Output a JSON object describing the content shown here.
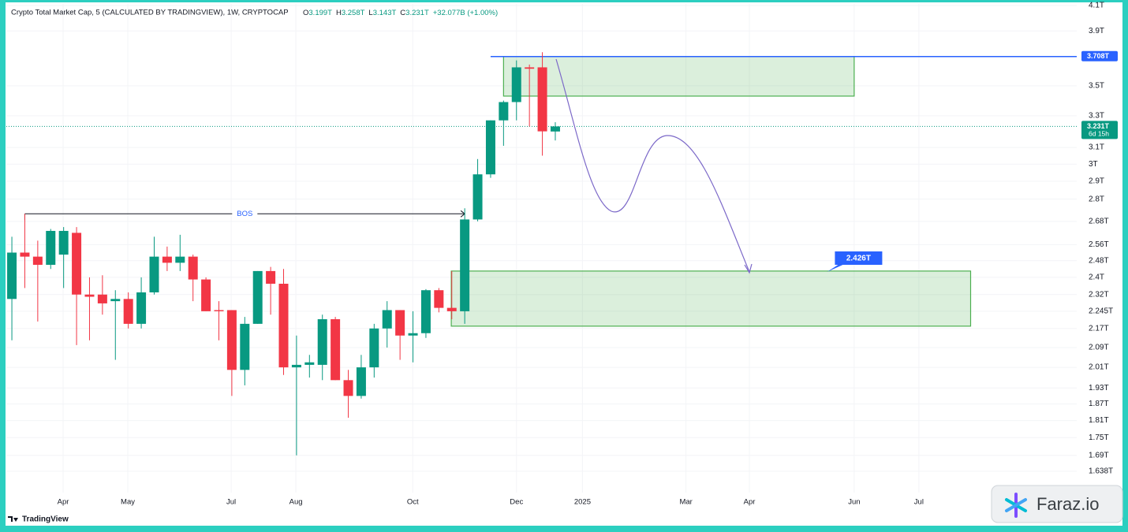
{
  "chart_data": {
    "type": "candlestick",
    "title": "Crypto Total Market Cap, 5 (CALCULATED BY TRADINGVIEW), 1W, CRYPTOCAP",
    "ohlc_legend": [
      {
        "key": "O",
        "text": "3.199T"
      },
      {
        "key": "H",
        "text": "3.258T"
      },
      {
        "key": "L",
        "text": "3.143T"
      },
      {
        "key": "C",
        "text": "3.231T"
      }
    ],
    "change": "+32.077B (+1.00%)",
    "x": [
      0,
      1,
      2,
      3,
      4,
      5,
      6,
      7,
      8,
      9,
      10,
      11,
      12,
      13,
      14,
      15,
      16,
      17,
      18,
      19,
      20,
      21,
      22,
      23,
      24,
      25,
      26,
      27,
      28,
      29,
      30,
      31,
      32,
      33,
      34,
      35,
      36,
      37,
      38,
      39,
      40,
      41,
      42
    ],
    "open": [
      2.3,
      2.52,
      2.5,
      2.46,
      2.51,
      2.62,
      2.32,
      2.32,
      2.29,
      2.3,
      2.19,
      2.33,
      2.5,
      2.47,
      2.5,
      2.39,
      2.25,
      2.25,
      2.0,
      2.19,
      2.43,
      2.37,
      2.01,
      2.02,
      2.02,
      2.21,
      1.96,
      1.9,
      2.01,
      2.17,
      2.25,
      2.14,
      2.15,
      2.34,
      2.26,
      2.245,
      2.69,
      2.94,
      3.27,
      3.39,
      3.63,
      3.63,
      3.199
    ],
    "high": [
      2.6,
      2.72,
      2.58,
      2.64,
      2.65,
      2.65,
      2.4,
      2.41,
      2.34,
      2.33,
      2.4,
      2.6,
      2.55,
      2.61,
      2.51,
      2.4,
      2.29,
      2.25,
      2.22,
      2.43,
      2.45,
      2.44,
      2.14,
      2.06,
      2.23,
      2.22,
      2.0,
      2.06,
      2.19,
      2.29,
      2.25,
      2.245,
      2.345,
      2.35,
      2.43,
      2.75,
      3.03,
      3.27,
      3.4,
      3.68,
      3.65,
      3.74,
      3.258
    ],
    "low": [
      2.12,
      2.35,
      2.2,
      2.44,
      2.35,
      2.1,
      2.12,
      2.23,
      2.04,
      2.17,
      2.17,
      2.32,
      2.43,
      2.43,
      2.29,
      2.245,
      2.12,
      1.9,
      1.94,
      2.19,
      2.23,
      1.98,
      1.69,
      1.97,
      1.96,
      1.96,
      1.82,
      1.89,
      1.97,
      2.09,
      2.04,
      2.03,
      2.13,
      2.24,
      2.21,
      2.19,
      2.68,
      2.92,
      3.11,
      3.27,
      3.23,
      3.05,
      3.143
    ],
    "close": [
      2.52,
      2.5,
      2.46,
      2.63,
      2.63,
      2.32,
      2.31,
      2.28,
      2.3,
      2.19,
      2.33,
      2.5,
      2.47,
      2.5,
      2.39,
      2.245,
      2.245,
      2.0,
      2.19,
      2.43,
      2.37,
      2.01,
      2.02,
      2.03,
      2.21,
      1.96,
      1.9,
      2.01,
      2.17,
      2.25,
      2.14,
      2.15,
      2.34,
      2.26,
      2.245,
      2.69,
      2.94,
      3.27,
      3.39,
      3.63,
      3.62,
      3.2,
      3.231
    ],
    "up_color": "#089981",
    "down_color": "#f23645",
    "xlim": [
      -0.43,
      82.3
    ],
    "xticks": [
      {
        "value": 3.96,
        "label": "Apr"
      },
      {
        "value": 8.96,
        "label": "May"
      },
      {
        "value": 16.95,
        "label": "Jul"
      },
      {
        "value": 21.95,
        "label": "Aug"
      },
      {
        "value": 30.98,
        "label": "Oct"
      },
      {
        "value": 39.0,
        "label": "Dec"
      },
      {
        "value": 44.1,
        "label": "2025"
      },
      {
        "value": 52.1,
        "label": "Mar"
      },
      {
        "value": 57.0,
        "label": "Apr"
      },
      {
        "value": 65.1,
        "label": "Jun"
      },
      {
        "value": 70.1,
        "label": "Jul"
      }
    ],
    "ylim": [
      1.5705,
      4.113
    ],
    "log_scale": true,
    "yticks": [
      {
        "value": 4.1,
        "label": "4.1T"
      },
      {
        "value": 3.9,
        "label": "3.9T"
      },
      {
        "value": 3.5,
        "label": "3.5T"
      },
      {
        "value": 3.3,
        "label": "3.3T"
      },
      {
        "value": 3.1,
        "label": "3.1T"
      },
      {
        "value": 3,
        "label": "3T"
      },
      {
        "value": 2.9,
        "label": "2.9T"
      },
      {
        "value": 2.8,
        "label": "2.8T"
      },
      {
        "value": 2.68,
        "label": "2.68T"
      },
      {
        "value": 2.56,
        "label": "2.56T"
      },
      {
        "value": 2.48,
        "label": "2.48T"
      },
      {
        "value": 2.4,
        "label": "2.4T"
      },
      {
        "value": 2.32,
        "label": "2.32T"
      },
      {
        "value": 2.245,
        "label": "2.245T"
      },
      {
        "value": 2.17,
        "label": "2.17T"
      },
      {
        "value": 2.09,
        "label": "2.09T"
      },
      {
        "value": 2.01,
        "label": "2.01T"
      },
      {
        "value": 1.93,
        "label": "1.93T"
      },
      {
        "value": 1.87,
        "label": "1.87T"
      },
      {
        "value": 1.81,
        "label": "1.81T"
      },
      {
        "value": 1.75,
        "label": "1.75T"
      },
      {
        "value": 1.69,
        "label": "1.69T"
      },
      {
        "value": 1.638,
        "label": "1.638T"
      }
    ],
    "grid": true,
    "annotations": {
      "bos": {
        "label": "BOS",
        "value": 2.72,
        "x": [
          1,
          35
        ]
      },
      "resistance_line": {
        "value": 3.708,
        "label": "3.708T",
        "x_start": 37,
        "color": "#2962ff"
      },
      "current_price": {
        "value": 3.231,
        "label": "3.231T",
        "countdown": "6d 15h"
      },
      "zones": [
        {
          "x": [
            38.0,
            65.1
          ],
          "y": [
            3.43,
            3.708
          ]
        },
        {
          "x": [
            33.96,
            74.1
          ],
          "y": [
            2.18,
            2.43
          ]
        }
      ],
      "target": {
        "value": 2.426,
        "label": "2.426T",
        "x": 63.0
      }
    },
    "footer": "TradingView",
    "watermark": "Faraz.io"
  }
}
